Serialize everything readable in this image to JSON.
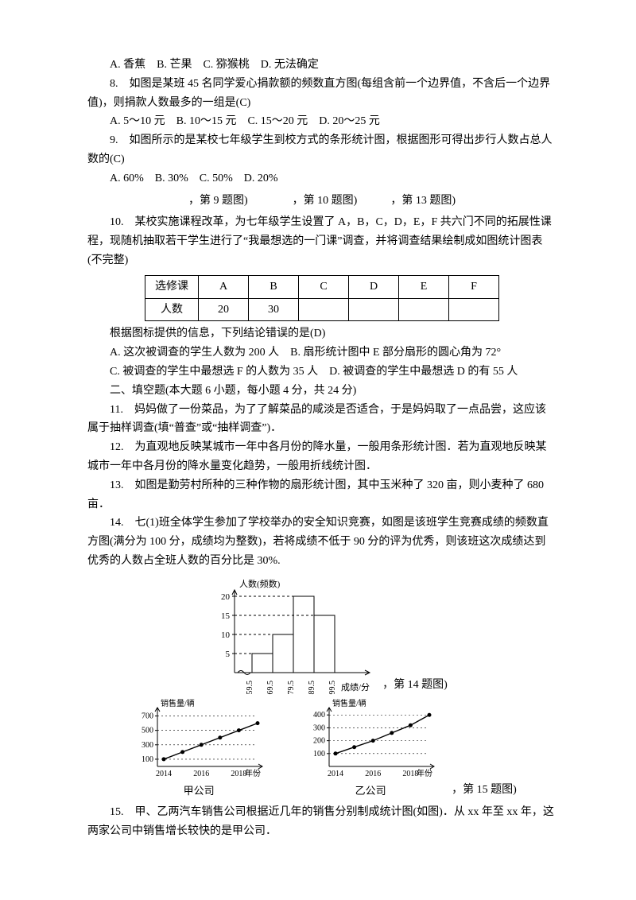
{
  "q7_options": "A. 香蕉　B. 芒果　C. 猕猴桃　D. 无法确定",
  "q8_line1": "8.　如图是某班 45 名同学爱心捐款额的频数直方图(每组含前一个边界值，不含后一个边界值)，则捐款人数最多的一组是(C)",
  "q8_options": "A. 5～10 元　B. 10～15 元　C. 15～20 元　D. 20～25 元",
  "q9_line1": "9.　如图所示的是某校七年级学生到校方式的条形统计图，根据图形可得出步行人数占总人数的(C)",
  "q9_options": "A. 60%　B. 30%　C. 50%　D. 20%",
  "fig_captions_1": "，第 9 题图)　　　　，第 10 题图)　　　，第 13 题图)",
  "q10_line1": "10.　某校实施课程改革，为七年级学生设置了 A，B，C，D，E，F 共六门不同的拓展性课程，现随机抽取若干学生进行了“我最想选的一门课”调查，并将调查结果绘制成如图统计图表(不完整)",
  "table_header": "选修课",
  "table_row_label": "人数",
  "table_cols": [
    "A",
    "B",
    "C",
    "D",
    "E",
    "F"
  ],
  "table_vals": [
    "20",
    "30",
    "",
    "",
    "",
    ""
  ],
  "q10_after": "根据图标提供的信息，下列结论错误的是(D)",
  "q10_optA": "A. 这次被调查的学生人数为 200 人　B. 扇形统计图中 E 部分扇形的圆心角为 72°",
  "q10_optC": "C. 被调查的学生中最想选 F 的人数为 35 人　D. 被调查的学生中最想选 D 的有 55 人",
  "section2": "二、填空题(本大题 6 小题，每小题 4 分，共 24 分)",
  "q11": "11.　妈妈做了一份菜品，为了了解菜品的咸淡是否适合，于是妈妈取了一点品尝，这应该属于抽样调查(填“普查”或“抽样调查”)．",
  "q12": "12.　为直观地反映某城市一年中各月份的降水量，一般用条形统计图．若为直观地反映某城市一年中各月份的降水量变化趋势，一般用折线统计图．",
  "q13": "13.　如图是勤劳村所种的三种作物的扇形统计图，其中玉米种了 320 亩，则小麦种了 680 亩．",
  "q14": "14.　七(1)班全体学生参加了学校举办的安全知识竞赛，如图是该班学生竞赛成绩的频数直方图(满分为 100 分，成绩均为整数)，若将成绩不低于 90 分的评为优秀，则该班这次成绩达到优秀的人数占全班人数的百分比是 30%.",
  "chart14": {
    "ylabel": "人数(频数)",
    "xlabel": "成绩/分",
    "yticks": [
      5,
      10,
      15,
      20
    ],
    "bars": [
      {
        "x": "59.5",
        "h": 5
      },
      {
        "x": "69.5",
        "h": 10
      },
      {
        "x": "79.5",
        "h": 20
      },
      {
        "x": "89.5",
        "h": 15
      }
    ],
    "last_x": "99.5",
    "caption": "，第 14 题图)"
  },
  "chart15a": {
    "ylabel": "销售量/辆",
    "yticks": [
      100,
      300,
      500,
      700
    ],
    "xticks": [
      "2014",
      "2016",
      "2018"
    ],
    "xlabel": "年份",
    "points": [
      100,
      200,
      300,
      400,
      500,
      600
    ],
    "sub": "甲公司"
  },
  "chart15b": {
    "ylabel": "销售量/辆",
    "yticks": [
      100,
      200,
      300,
      400
    ],
    "xticks": [
      "2014",
      "2016",
      "2018"
    ],
    "xlabel": "年份",
    "points": [
      100,
      150,
      200,
      260,
      320,
      400
    ],
    "sub": "乙公司"
  },
  "chart15_caption": "，第 15 题图)",
  "q15": "15.　甲、乙两汽车销售公司根据近几年的销售分别制成统计图(如图)．从 xx 年至 xx 年，这两家公司中销售增长较快的是甲公司．"
}
